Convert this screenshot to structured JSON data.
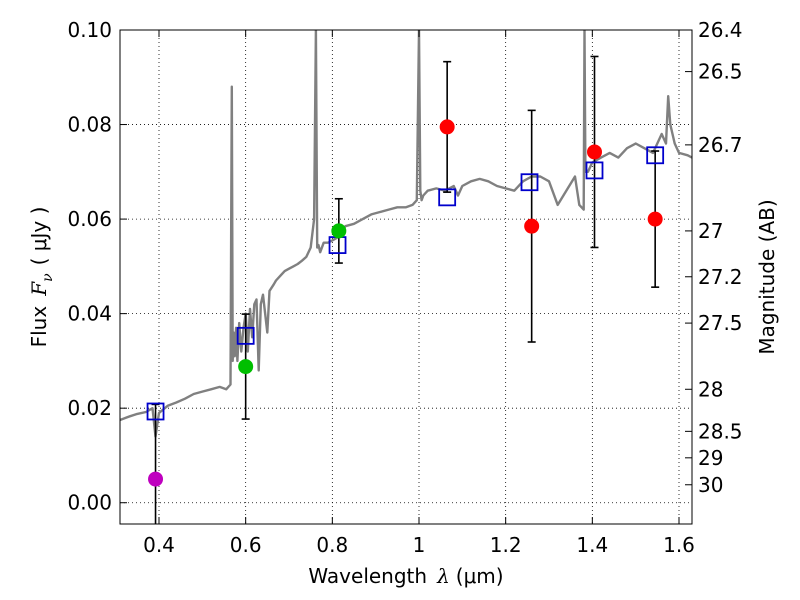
{
  "chart_data": {
    "type": "scatter",
    "xlabel_prefix": "Wavelength",
    "xlabel_symbol": "λ",
    "xlabel_unit": "(μm)",
    "ylabel_prefix": "Flux",
    "ylabel_symbol": "F",
    "ylabel_subscript": "ν",
    "ylabel_unit": "( μJy )",
    "y2label": "Magnitude (AB)",
    "xlim": [
      0.31,
      1.63
    ],
    "ylim": [
      -0.0045,
      0.1
    ],
    "xticks": [
      0.4,
      0.6,
      0.8,
      1.0,
      1.2,
      1.4,
      1.6
    ],
    "xtick_labels": [
      "0.4",
      "0.6",
      "0.8",
      "1",
      "1.2",
      "1.4",
      "1.6"
    ],
    "yticks": [
      0.0,
      0.02,
      0.04,
      0.06,
      0.08,
      0.1
    ],
    "ytick_labels": [
      "0.00",
      "0.02",
      "0.04",
      "0.06",
      "0.08",
      "0.10"
    ],
    "grid": true,
    "mag_ticks": [
      {
        "flux": 0.1,
        "label": "26.4"
      },
      {
        "flux": 0.0912,
        "label": "26.5"
      },
      {
        "flux": 0.0757,
        "label": "26.7"
      },
      {
        "flux": 0.0575,
        "label": "27"
      },
      {
        "flux": 0.0478,
        "label": "27.2"
      },
      {
        "flux": 0.038,
        "label": "27.5"
      },
      {
        "flux": 0.024,
        "label": "28"
      },
      {
        "flux": 0.0151,
        "label": "28.5"
      },
      {
        "flux": 0.0095,
        "label": "29"
      },
      {
        "flux": 0.0038,
        "label": "30"
      }
    ],
    "model_spectrum": {
      "color": "#808080",
      "x": [
        0.31,
        0.33,
        0.35,
        0.37,
        0.385,
        0.392,
        0.4,
        0.42,
        0.44,
        0.46,
        0.48,
        0.5,
        0.52,
        0.54,
        0.555,
        0.565,
        0.568,
        0.57,
        0.572,
        0.575,
        0.578,
        0.581,
        0.585,
        0.59,
        0.595,
        0.6,
        0.605,
        0.61,
        0.615,
        0.62,
        0.625,
        0.63,
        0.635,
        0.64,
        0.65,
        0.655,
        0.66,
        0.665,
        0.67,
        0.68,
        0.69,
        0.7,
        0.71,
        0.72,
        0.73,
        0.74,
        0.75,
        0.758,
        0.762,
        0.765,
        0.768,
        0.772,
        0.78,
        0.79,
        0.8,
        0.81,
        0.82,
        0.83,
        0.85,
        0.87,
        0.89,
        0.91,
        0.93,
        0.95,
        0.97,
        0.985,
        0.995,
        1.0,
        1.003,
        1.006,
        1.01,
        1.02,
        1.04,
        1.06,
        1.08,
        1.09,
        1.1,
        1.12,
        1.14,
        1.16,
        1.18,
        1.2,
        1.22,
        1.24,
        1.26,
        1.28,
        1.3,
        1.32,
        1.34,
        1.36,
        1.37,
        1.38,
        1.382,
        1.384,
        1.39,
        1.4,
        1.42,
        1.44,
        1.46,
        1.48,
        1.5,
        1.52,
        1.54,
        1.55,
        1.56,
        1.57,
        1.575,
        1.58,
        1.59,
        1.6,
        1.62,
        1.63
      ],
      "y": [
        0.0175,
        0.0182,
        0.0188,
        0.0192,
        0.02,
        0.014,
        0.019,
        0.0205,
        0.0212,
        0.022,
        0.023,
        0.0235,
        0.024,
        0.0245,
        0.024,
        0.025,
        0.088,
        0.03,
        0.036,
        0.031,
        0.037,
        0.03,
        0.038,
        0.032,
        0.037,
        0.04,
        0.032,
        0.041,
        0.035,
        0.042,
        0.043,
        0.028,
        0.042,
        0.044,
        0.036,
        0.0448,
        0.0455,
        0.0462,
        0.047,
        0.048,
        0.049,
        0.0495,
        0.05,
        0.0505,
        0.0512,
        0.052,
        0.054,
        0.06,
        0.1,
        0.054,
        0.0545,
        0.053,
        0.055,
        0.055,
        0.0555,
        0.056,
        0.057,
        0.0585,
        0.059,
        0.06,
        0.061,
        0.0615,
        0.062,
        0.0625,
        0.0625,
        0.063,
        0.064,
        0.1,
        0.066,
        0.064,
        0.065,
        0.066,
        0.0665,
        0.066,
        0.067,
        0.065,
        0.067,
        0.068,
        0.0685,
        0.068,
        0.067,
        0.0665,
        0.066,
        0.068,
        0.069,
        0.069,
        0.068,
        0.063,
        0.066,
        0.069,
        0.063,
        0.062,
        0.1,
        0.07,
        0.07,
        0.072,
        0.073,
        0.074,
        0.073,
        0.075,
        0.076,
        0.075,
        0.074,
        0.076,
        0.078,
        0.076,
        0.086,
        0.08,
        0.076,
        0.074,
        0.0735,
        0.073
      ]
    },
    "series": [
      {
        "name": "model-band-fluxes",
        "marker": "open-square",
        "color": "#0000cc",
        "points": [
          {
            "x": 0.392,
            "y": 0.0193
          },
          {
            "x": 0.6,
            "y": 0.0353
          },
          {
            "x": 0.812,
            "y": 0.0545
          },
          {
            "x": 1.065,
            "y": 0.0646
          },
          {
            "x": 1.255,
            "y": 0.0678
          },
          {
            "x": 1.405,
            "y": 0.0703
          },
          {
            "x": 1.545,
            "y": 0.0735
          }
        ]
      },
      {
        "name": "observed-uv",
        "marker": "filled-circle",
        "color": "#bf00bf",
        "points": [
          {
            "x": 0.392,
            "y": 0.005,
            "err": 0.0158
          }
        ]
      },
      {
        "name": "observed-optical",
        "marker": "filled-circle",
        "color": "#00bf00",
        "points": [
          {
            "x": 0.6,
            "y": 0.0288,
            "err": 0.0111
          },
          {
            "x": 0.815,
            "y": 0.0575,
            "err": 0.0068
          }
        ]
      },
      {
        "name": "observed-nir",
        "marker": "filled-circle",
        "color": "#ff0000",
        "points": [
          {
            "x": 1.065,
            "y": 0.0795,
            "err": 0.0138
          },
          {
            "x": 1.26,
            "y": 0.0585,
            "err": 0.0245
          },
          {
            "x": 1.405,
            "y": 0.0742,
            "err": 0.0202
          },
          {
            "x": 1.545,
            "y": 0.06,
            "err": 0.0144
          }
        ]
      }
    ]
  }
}
